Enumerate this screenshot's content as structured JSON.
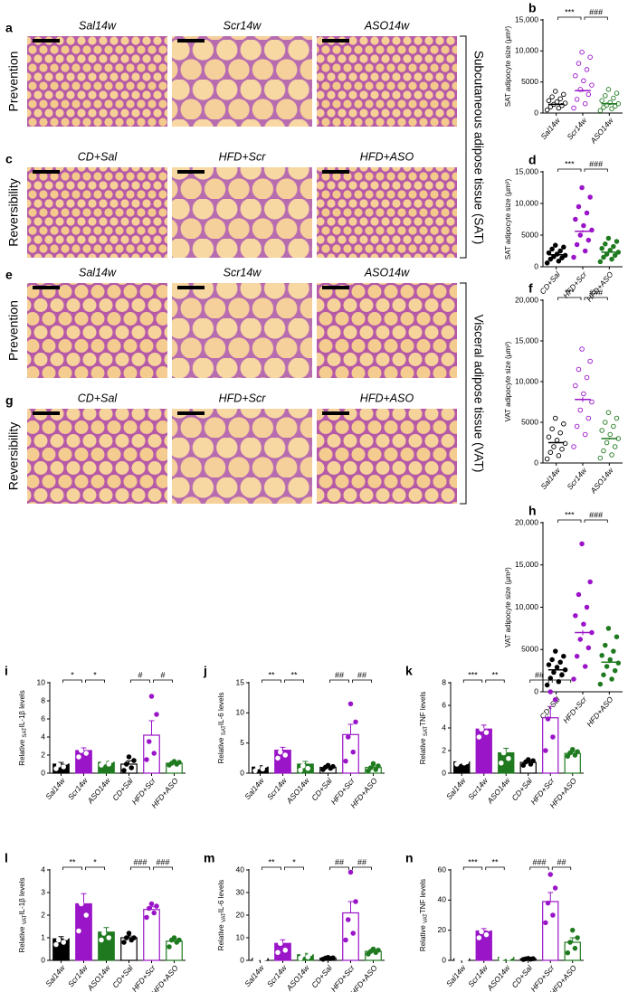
{
  "image_panels": [
    {
      "letter": "a",
      "row_label": "Prevention",
      "titles": [
        "Sal14w",
        "Scr14w",
        "ASO14w"
      ]
    },
    {
      "letter": "c",
      "row_label": "Reversibility",
      "titles": [
        "CD+Sal",
        "HFD+Scr",
        "HFD+ASO"
      ]
    },
    {
      "letter": "e",
      "row_label": "Prevention",
      "titles": [
        "Sal14w",
        "Scr14w",
        "ASO14w"
      ]
    },
    {
      "letter": "g",
      "row_label": "Reversibility",
      "titles": [
        "CD+Sal",
        "HFD+Scr",
        "HFD+ASO"
      ]
    }
  ],
  "tissue_labels": [
    "Subcutaneous adipose tissue (SAT)",
    "Visceral adipose tissue (VAT)"
  ],
  "chart_data": [
    {
      "type": "dotplot",
      "letter": "b",
      "ylabel": "SAT adipocyte size (μm²)",
      "categories": [
        "Sal14w",
        "Scr14w",
        "ASO14w"
      ],
      "colors": [
        "#000000",
        "#9a14c8",
        "#1f7a1f"
      ],
      "filled": [
        false,
        false,
        false
      ],
      "values": [
        1400,
        3600,
        1500
      ],
      "errors": [
        80,
        200,
        80
      ],
      "points": [
        [
          500,
          800,
          1000,
          1200,
          1400,
          1600,
          1800,
          2000,
          2300,
          2600,
          3000,
          3500
        ],
        [
          800,
          1500,
          2200,
          3000,
          3800,
          4500,
          5200,
          6000,
          7000,
          8000,
          9000,
          9800
        ],
        [
          400,
          700,
          900,
          1100,
          1300,
          1500,
          1700,
          2000,
          2400,
          2800,
          3200,
          3800
        ]
      ],
      "significance": [
        "***",
        "###"
      ],
      "ylim": [
        0,
        15000
      ],
      "yticks": [
        0,
        5000,
        {
          "value": 10000,
          "label": "10,000"
        },
        {
          "value": 15000,
          "label": "15,000"
        }
      ]
    },
    {
      "type": "dotplot",
      "letter": "d",
      "ylabel": "SAT adipocyte size (μm²)",
      "categories": [
        "CD+Sal",
        "HFD+Scr",
        "HFD+ASO"
      ],
      "colors": [
        "#000000",
        "#9a14c8",
        "#1f7a1f"
      ],
      "filled": [
        true,
        true,
        true
      ],
      "values": [
        1900,
        5600,
        2300
      ],
      "errors": [
        60,
        200,
        80
      ],
      "points": [
        [
          600,
          900,
          1200,
          1400,
          1600,
          1800,
          2000,
          2200,
          2500,
          2800,
          3100,
          3400
        ],
        [
          1500,
          2500,
          3500,
          4200,
          5000,
          5800,
          6500,
          7500,
          8500,
          9500,
          11000,
          12500
        ],
        [
          800,
          1200,
          1500,
          1800,
          2000,
          2300,
          2600,
          2900,
          3200,
          3600,
          4000,
          4500
        ]
      ],
      "significance": [
        "***",
        "###"
      ],
      "ylim": [
        0,
        15000
      ],
      "yticks": [
        0,
        5000,
        {
          "value": 10000,
          "label": "10,000"
        },
        {
          "value": 15000,
          "label": "15,000"
        }
      ]
    },
    {
      "type": "dotplot",
      "letter": "f",
      "ylabel": "VAT adipocyte size (μm²)",
      "categories": [
        "Sal14w",
        "Scr14w",
        "ASO14w"
      ],
      "colors": [
        "#000000",
        "#9a14c8",
        "#1f7a1f"
      ],
      "filled": [
        false,
        false,
        false
      ],
      "values": [
        2500,
        7800,
        3000
      ],
      "errors": [
        100,
        300,
        120
      ],
      "points": [
        [
          500,
          900,
          1300,
          1700,
          2000,
          2400,
          2800,
          3200,
          3700,
          4200,
          4800,
          5500
        ],
        [
          2000,
          3500,
          4500,
          5500,
          6500,
          7500,
          8500,
          9500,
          10500,
          11500,
          12500,
          14000
        ],
        [
          600,
          1000,
          1500,
          2000,
          2500,
          3000,
          3500,
          4000,
          4500,
          5000,
          5500,
          6200
        ]
      ],
      "significance": [
        "***",
        "###"
      ],
      "ylim": [
        0,
        20000
      ],
      "yticks": [
        0,
        5000,
        {
          "value": 10000,
          "label": "10,000"
        },
        {
          "value": 15000,
          "label": "15,000"
        },
        {
          "value": 20000,
          "label": "20,000"
        }
      ]
    },
    {
      "type": "dotplot",
      "letter": "h",
      "ylabel": "VAT adipocyte size (μm²)",
      "categories": [
        "CD+Sal",
        "HFD+Scr",
        "HFD+ASO"
      ],
      "colors": [
        "#000000",
        "#9a14c8",
        "#1f7a1f"
      ],
      "filled": [
        true,
        true,
        true
      ],
      "values": [
        2600,
        7000,
        3500
      ],
      "errors": [
        80,
        300,
        120
      ],
      "points": [
        [
          800,
          1200,
          1600,
          2000,
          2300,
          2600,
          2900,
          3200,
          3500,
          3800,
          4200,
          4800
        ],
        [
          1500,
          3000,
          4200,
          5200,
          6200,
          7000,
          8000,
          9000,
          10000,
          11500,
          13000,
          17500
        ],
        [
          900,
          1500,
          2000,
          2500,
          3000,
          3400,
          3800,
          4300,
          4800,
          5500,
          6500,
          7500
        ]
      ],
      "significance": [
        "***",
        "###"
      ],
      "ylim": [
        0,
        20000
      ],
      "yticks": [
        0,
        5000,
        {
          "value": 10000,
          "label": "10,000"
        },
        {
          "value": 15000,
          "label": "15,000"
        },
        {
          "value": 20000,
          "label": "20,000"
        }
      ]
    },
    {
      "type": "bar",
      "letter": "i",
      "ylabel": {
        "pre": "Relative ",
        "sub": "SAT",
        "post": "IL-1β levels"
      },
      "categories": [
        "Sal14w",
        "Scr14w",
        "ASO14w",
        "CD+Sal",
        "HFD+Scr",
        "HFD+ASO"
      ],
      "colors": [
        "#000000",
        "#9a14c8",
        "#1f7a1f",
        "#000000",
        "#9a14c8",
        "#1f7a1f"
      ],
      "filled": [
        true,
        true,
        true,
        false,
        false,
        false
      ],
      "values": [
        1.0,
        2.5,
        1.2,
        1.0,
        4.2,
        1.1
      ],
      "errors": [
        0.2,
        0.3,
        0.15,
        0.35,
        1.6,
        0.08
      ],
      "points": [
        [
          0.5,
          0.7,
          0.9,
          1.2,
          1.5
        ],
        [
          1.8,
          2.2,
          2.5,
          2.9,
          3.3
        ],
        [
          0.9,
          1.0,
          1.2,
          1.4,
          1.6
        ],
        [
          0.3,
          0.6,
          1.0,
          1.4,
          1.8
        ],
        [
          1.5,
          2.2,
          3.5,
          6.5,
          8.5
        ],
        [
          0.9,
          1.0,
          1.1,
          1.2,
          1.3
        ]
      ],
      "significance": [
        "*",
        "*",
        "#",
        "#"
      ],
      "ylim": [
        0,
        10
      ],
      "yticks": [
        0,
        2,
        4,
        6,
        8,
        10
      ]
    },
    {
      "type": "bar",
      "letter": "j",
      "ylabel": {
        "pre": "Relative ",
        "sub": "SAT",
        "post": "IL-6 levels"
      },
      "categories": [
        "Sal14w",
        "Scr14w",
        "ASO14w",
        "CD+Sal",
        "HFD+Scr",
        "HFD+ASO"
      ],
      "colors": [
        "#000000",
        "#9a14c8",
        "#1f7a1f",
        "#000000",
        "#9a14c8",
        "#1f7a1f"
      ],
      "filled": [
        true,
        true,
        true,
        false,
        false,
        false
      ],
      "values": [
        1.0,
        3.8,
        1.5,
        0.95,
        6.4,
        0.95
      ],
      "errors": [
        0.25,
        0.5,
        0.45,
        0.15,
        1.7,
        0.25
      ],
      "points": [
        [
          0.4,
          0.7,
          1.0,
          1.3,
          1.7
        ],
        [
          2.5,
          3.0,
          3.5,
          4.5,
          5.0
        ],
        [
          0.5,
          0.8,
          1.2,
          2.0,
          3.0
        ],
        [
          0.6,
          0.8,
          1.0,
          1.1,
          1.3
        ],
        [
          2.0,
          3.5,
          6.0,
          8.5,
          11.5
        ],
        [
          0.4,
          0.6,
          0.9,
          1.2,
          1.6
        ]
      ],
      "significance": [
        "**",
        "**",
        "##",
        "##"
      ],
      "ylim": [
        0,
        15
      ],
      "yticks": [
        0,
        5,
        10,
        15
      ]
    },
    {
      "type": "bar",
      "letter": "k",
      "ylabel": {
        "pre": "Relative ",
        "sub": "SAT",
        "post": "TNF levels"
      },
      "categories": [
        "Sal14w",
        "Scr14w",
        "ASO14w",
        "CD+Sal",
        "HFD+Scr",
        "HFD+ASO"
      ],
      "colors": [
        "#000000",
        "#9a14c8",
        "#1f7a1f",
        "#000000",
        "#9a14c8",
        "#1f7a1f"
      ],
      "filled": [
        true,
        true,
        true,
        false,
        false,
        false
      ],
      "values": [
        1.0,
        3.9,
        1.8,
        0.95,
        4.9,
        1.75
      ],
      "errors": [
        0.05,
        0.35,
        0.4,
        0.1,
        1.0,
        0.15
      ],
      "points": [
        [
          0.8,
          0.9,
          1.0,
          1.0,
          1.1
        ],
        [
          3.2,
          3.6,
          3.9,
          4.3,
          4.8
        ],
        [
          0.9,
          1.3,
          1.8,
          2.3,
          2.8
        ],
        [
          0.7,
          0.8,
          1.0,
          1.1,
          1.2
        ],
        [
          2.0,
          3.2,
          4.8,
          6.5,
          7.2
        ],
        [
          1.5,
          1.6,
          1.8,
          1.9,
          2.1
        ]
      ],
      "significance": [
        "***",
        "**",
        "##",
        "#"
      ],
      "ylim": [
        0,
        8
      ],
      "yticks": [
        0,
        2,
        4,
        6,
        8
      ]
    },
    {
      "type": "bar",
      "letter": "l",
      "ylabel": {
        "pre": "Relative ",
        "sub": "VAT",
        "post": "IL-1β levels"
      },
      "categories": [
        "Sal14w",
        "Scr14w",
        "ASO14w",
        "CD+Sal",
        "HFD+Scr",
        "HFD+ASO"
      ],
      "colors": [
        "#000000",
        "#9a14c8",
        "#1f7a1f",
        "#000000",
        "#9a14c8",
        "#1f7a1f"
      ],
      "filled": [
        true,
        true,
        true,
        false,
        false,
        false
      ],
      "values": [
        0.95,
        2.5,
        1.25,
        1.0,
        2.25,
        0.85
      ],
      "errors": [
        0.1,
        0.45,
        0.2,
        0.08,
        0.12,
        0.08
      ],
      "points": [
        [
          0.7,
          0.8,
          0.9,
          1.0,
          1.3
        ],
        [
          1.3,
          2.0,
          2.5,
          3.1,
          3.6
        ],
        [
          0.9,
          1.0,
          1.2,
          1.5,
          1.7
        ],
        [
          0.8,
          0.9,
          1.0,
          1.0,
          1.2
        ],
        [
          1.9,
          2.1,
          2.3,
          2.4,
          2.5
        ],
        [
          0.6,
          0.8,
          0.9,
          0.9,
          1.0
        ]
      ],
      "significance": [
        "**",
        "*",
        "###",
        "###"
      ],
      "ylim": [
        0,
        4
      ],
      "yticks": [
        0,
        1,
        2,
        3,
        4
      ]
    },
    {
      "type": "bar",
      "letter": "m",
      "ylabel": {
        "pre": "Relative ",
        "sub": "VAT",
        "post": "IL-6 levels"
      },
      "categories": [
        "Sal14w",
        "Scr14w",
        "ASO14w",
        "CD+Sal",
        "HFD+Scr",
        "HFD+ASO"
      ],
      "colors": [
        "#000000",
        "#9a14c8",
        "#1f7a1f",
        "#000000",
        "#9a14c8",
        "#1f7a1f"
      ],
      "filled": [
        true,
        true,
        true,
        false,
        false,
        false
      ],
      "values": [
        0.8,
        7.5,
        2.5,
        0.95,
        21,
        4
      ],
      "errors": [
        0.2,
        1.6,
        0.6,
        0.15,
        5,
        0.4
      ],
      "points": [
        [
          0.3,
          0.5,
          0.8,
          1.0,
          1.3
        ],
        [
          3.5,
          4.5,
          7.5,
          9.0,
          13.0
        ],
        [
          1.0,
          1.5,
          2.5,
          3.0,
          4.5
        ],
        [
          0.5,
          0.8,
          1.0,
          1.1,
          1.3
        ],
        [
          9.0,
          12.0,
          18.0,
          26.0,
          39.0
        ],
        [
          2.8,
          3.5,
          4.0,
          4.5,
          5.0
        ]
      ],
      "significance": [
        "**",
        "*",
        "##",
        "##"
      ],
      "ylim": [
        0,
        40
      ],
      "yticks": [
        0,
        10,
        20,
        30,
        40
      ]
    },
    {
      "type": "bar",
      "letter": "n",
      "ylabel": {
        "pre": "Relative ",
        "sub": "VAT",
        "post": "TNF levels"
      },
      "categories": [
        "Sal14w",
        "Scr14w",
        "ASO14w",
        "CD+Sal",
        "HFD+Scr",
        "HFD+ASO"
      ],
      "colors": [
        "#000000",
        "#9a14c8",
        "#1f7a1f",
        "#000000",
        "#9a14c8",
        "#1f7a1f"
      ],
      "filled": [
        true,
        true,
        true,
        false,
        false,
        false
      ],
      "values": [
        1,
        19.5,
        2,
        1,
        39,
        12
      ],
      "errors": [
        0.2,
        1.6,
        0.4,
        0.1,
        6,
        3
      ],
      "points": [
        [
          0.5,
          0.8,
          1.0,
          1.2,
          1.5
        ],
        [
          15,
          17,
          19,
          21,
          24
        ],
        [
          1.0,
          1.5,
          2.0,
          2.5,
          3.0
        ],
        [
          0.6,
          0.8,
          1.0,
          1.1,
          1.3
        ],
        [
          25,
          30,
          38,
          48,
          57
        ],
        [
          5,
          8,
          12,
          15,
          20
        ]
      ],
      "significance": [
        "***",
        "**",
        "###",
        "##"
      ],
      "ylim": [
        0,
        60
      ],
      "yticks": [
        0,
        20,
        40,
        60
      ]
    }
  ]
}
